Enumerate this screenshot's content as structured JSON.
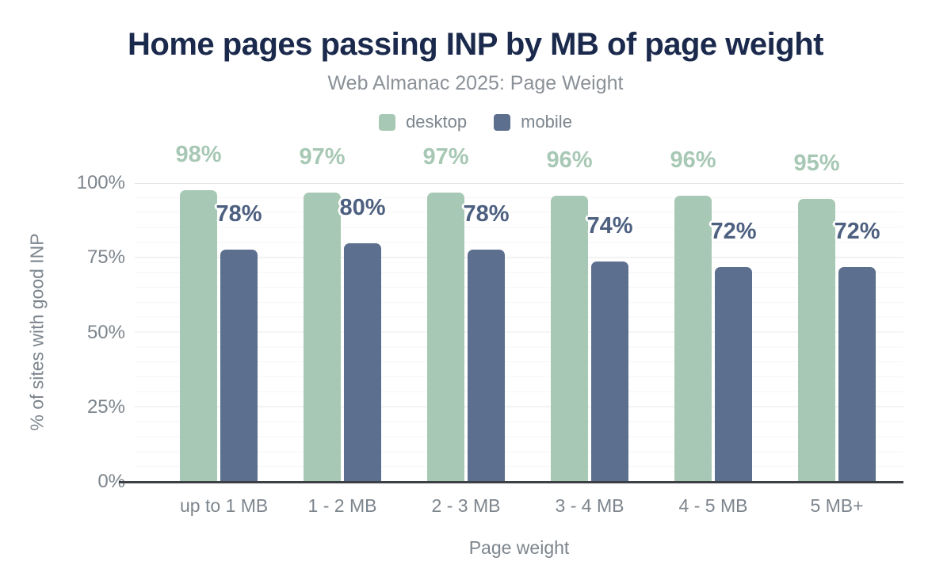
{
  "title": "Home pages passing INP by MB of page weight",
  "subtitle": "Web Almanac 2025: Page Weight",
  "colors": {
    "title": "#1b2a4c",
    "muted_text": "#7d858d",
    "desktop": "#a7c8b4",
    "mobile": "#5c6f8e",
    "mobile_label": "#4d6080",
    "axis_line": "#3c3f43"
  },
  "chart_data": {
    "type": "bar",
    "title": "Home pages passing INP by MB of page weight",
    "subtitle": "Web Almanac 2025: Page Weight",
    "categories": [
      "up to 1 MB",
      "1 - 2 MB",
      "2 - 3 MB",
      "3 - 4 MB",
      "4 - 5 MB",
      "5 MB+"
    ],
    "series": [
      {
        "name": "desktop",
        "color": "#a7c8b4",
        "label_color": "#a7c8b4",
        "values": [
          98,
          97,
          97,
          96,
          96,
          95
        ],
        "labels": [
          "98%",
          "97%",
          "97%",
          "96%",
          "96%",
          "95%"
        ]
      },
      {
        "name": "mobile",
        "color": "#5c6f8e",
        "label_color": "#4d6080",
        "values": [
          78,
          80,
          78,
          74,
          72,
          72
        ],
        "labels": [
          "78%",
          "80%",
          "78%",
          "74%",
          "72%",
          "72%"
        ]
      }
    ],
    "xlabel": "Page weight",
    "ylabel": "% of sites with good INP",
    "ylim": [
      0,
      100
    ],
    "yticks": [
      "0%",
      "25%",
      "50%",
      "75%",
      "100%"
    ],
    "grid": {
      "minor_step": 5,
      "major_step": 25,
      "legend_position": "top"
    }
  }
}
